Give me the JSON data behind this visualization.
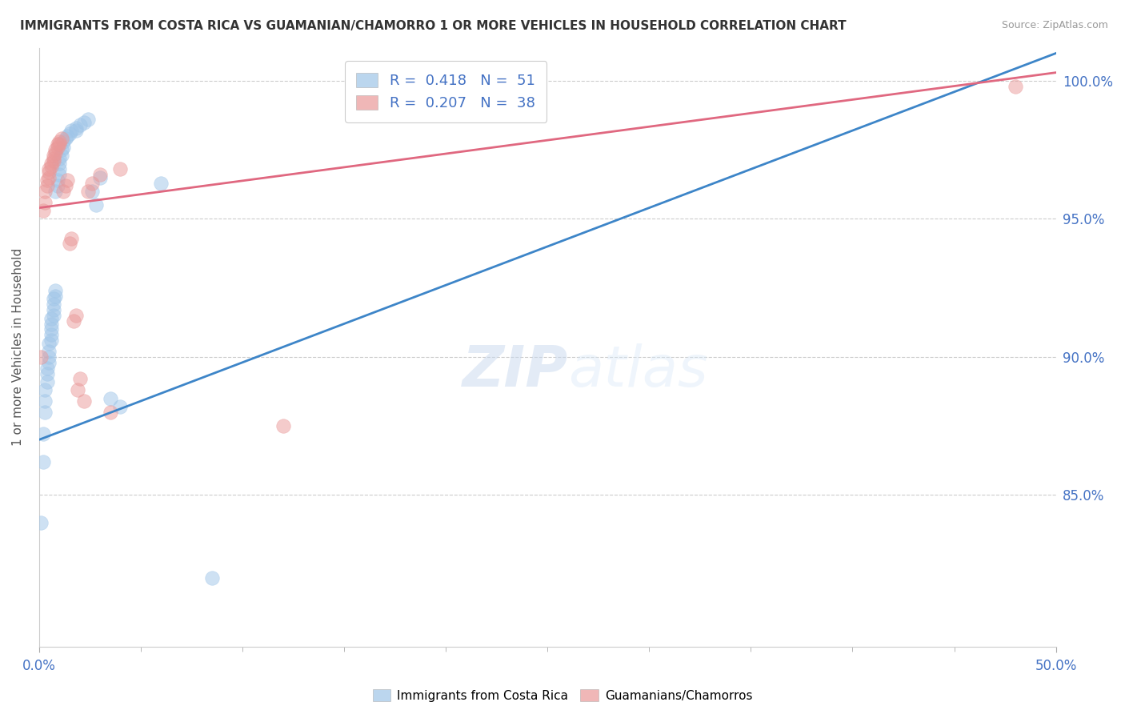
{
  "title": "IMMIGRANTS FROM COSTA RICA VS GUAMANIAN/CHAMORRO 1 OR MORE VEHICLES IN HOUSEHOLD CORRELATION CHART",
  "source": "Source: ZipAtlas.com",
  "ylabel_text": "1 or more Vehicles in Household",
  "xlim": [
    0.0,
    0.5
  ],
  "ylim": [
    0.795,
    1.012
  ],
  "xticks": [
    0.0,
    0.5
  ],
  "xticklabels": [
    "0.0%",
    "50.0%"
  ],
  "ytick_positions": [
    0.85,
    0.9,
    0.95,
    1.0
  ],
  "ytick_labels": [
    "85.0%",
    "90.0%",
    "95.0%",
    "100.0%"
  ],
  "color_blue": "#9fc5e8",
  "color_pink": "#ea9999",
  "color_blue_line": "#3d85c8",
  "color_pink_line": "#e06880",
  "color_axis_labels": "#4472c4",
  "watermark_zip": "ZIP",
  "watermark_atlas": "atlas",
  "blue_x": [
    0.001,
    0.002,
    0.002,
    0.003,
    0.003,
    0.003,
    0.004,
    0.004,
    0.004,
    0.005,
    0.005,
    0.005,
    0.005,
    0.006,
    0.006,
    0.006,
    0.006,
    0.006,
    0.007,
    0.007,
    0.007,
    0.007,
    0.008,
    0.008,
    0.008,
    0.009,
    0.009,
    0.01,
    0.01,
    0.01,
    0.01,
    0.011,
    0.011,
    0.012,
    0.012,
    0.013,
    0.014,
    0.015,
    0.016,
    0.018,
    0.018,
    0.02,
    0.022,
    0.024,
    0.026,
    0.028,
    0.03,
    0.035,
    0.04,
    0.06,
    0.085
  ],
  "blue_y": [
    0.84,
    0.862,
    0.872,
    0.88,
    0.884,
    0.888,
    0.891,
    0.894,
    0.896,
    0.898,
    0.9,
    0.902,
    0.905,
    0.906,
    0.908,
    0.91,
    0.912,
    0.914,
    0.915,
    0.917,
    0.919,
    0.921,
    0.922,
    0.924,
    0.96,
    0.962,
    0.964,
    0.966,
    0.968,
    0.97,
    0.972,
    0.973,
    0.975,
    0.976,
    0.978,
    0.979,
    0.98,
    0.981,
    0.982,
    0.982,
    0.983,
    0.984,
    0.985,
    0.986,
    0.96,
    0.955,
    0.965,
    0.885,
    0.882,
    0.963,
    0.82
  ],
  "pink_x": [
    0.001,
    0.002,
    0.003,
    0.003,
    0.004,
    0.004,
    0.005,
    0.005,
    0.005,
    0.006,
    0.006,
    0.007,
    0.007,
    0.007,
    0.008,
    0.008,
    0.009,
    0.009,
    0.01,
    0.01,
    0.011,
    0.012,
    0.013,
    0.014,
    0.015,
    0.016,
    0.017,
    0.018,
    0.019,
    0.02,
    0.022,
    0.024,
    0.026,
    0.03,
    0.035,
    0.04,
    0.12,
    0.48
  ],
  "pink_y": [
    0.9,
    0.953,
    0.956,
    0.96,
    0.962,
    0.964,
    0.965,
    0.967,
    0.968,
    0.969,
    0.97,
    0.971,
    0.972,
    0.973,
    0.974,
    0.975,
    0.976,
    0.977,
    0.977,
    0.978,
    0.979,
    0.96,
    0.962,
    0.964,
    0.941,
    0.943,
    0.913,
    0.915,
    0.888,
    0.892,
    0.884,
    0.96,
    0.963,
    0.966,
    0.88,
    0.968,
    0.875,
    0.998
  ],
  "blue_trend_x": [
    0.0,
    0.5
  ],
  "blue_trend_y": [
    0.87,
    1.01
  ],
  "pink_trend_x": [
    0.0,
    0.5
  ],
  "pink_trend_y": [
    0.954,
    1.003
  ]
}
